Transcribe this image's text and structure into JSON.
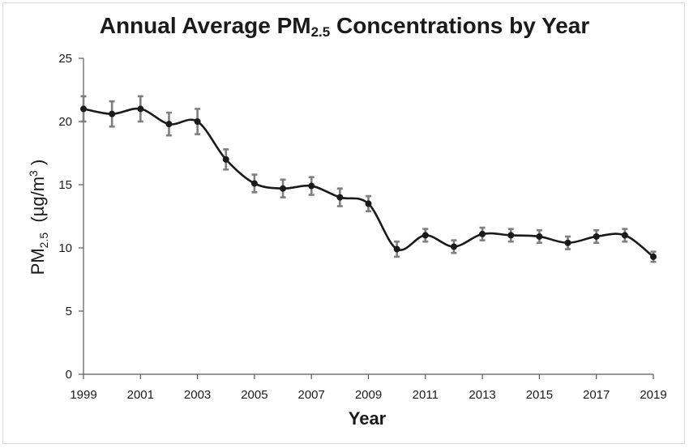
{
  "chart_data": {
    "type": "line",
    "title_main": "Annual Average PM",
    "title_sub": "2.5",
    "title_rest": " Concentrations by Year",
    "xlabel": "Year",
    "ylabel_main": "PM",
    "ylabel_sub": "2.5",
    "ylabel_unit": "(µg/m",
    "ylabel_sup": "3",
    "ylabel_close": ")",
    "x": [
      1999,
      2000,
      2001,
      2002,
      2003,
      2004,
      2005,
      2006,
      2007,
      2008,
      2009,
      2010,
      2011,
      2012,
      2013,
      2014,
      2015,
      2016,
      2017,
      2018,
      2019
    ],
    "series": [
      {
        "values": [
          21.0,
          20.6,
          21.0,
          19.8,
          20.0,
          17.0,
          15.1,
          14.7,
          14.9,
          14.0,
          13.5,
          9.9,
          11.0,
          10.1,
          11.1,
          11.0,
          10.9,
          10.4,
          10.9,
          11.0,
          9.3
        ],
        "error": [
          1.0,
          1.0,
          1.0,
          0.9,
          1.0,
          0.8,
          0.7,
          0.7,
          0.7,
          0.7,
          0.6,
          0.6,
          0.5,
          0.5,
          0.5,
          0.5,
          0.5,
          0.5,
          0.5,
          0.5,
          0.4
        ]
      }
    ],
    "xticks": [
      1999,
      2001,
      2003,
      2005,
      2007,
      2009,
      2011,
      2013,
      2015,
      2017,
      2019
    ],
    "yticks": [
      0,
      5,
      10,
      15,
      20,
      25
    ],
    "xlim": [
      1999,
      2019
    ],
    "ylim": [
      0,
      25
    ],
    "grid": false,
    "line_color": "#1a1a1a",
    "errorbar_color": "#7f7f7f",
    "marker_color": "#1a1a1a"
  }
}
